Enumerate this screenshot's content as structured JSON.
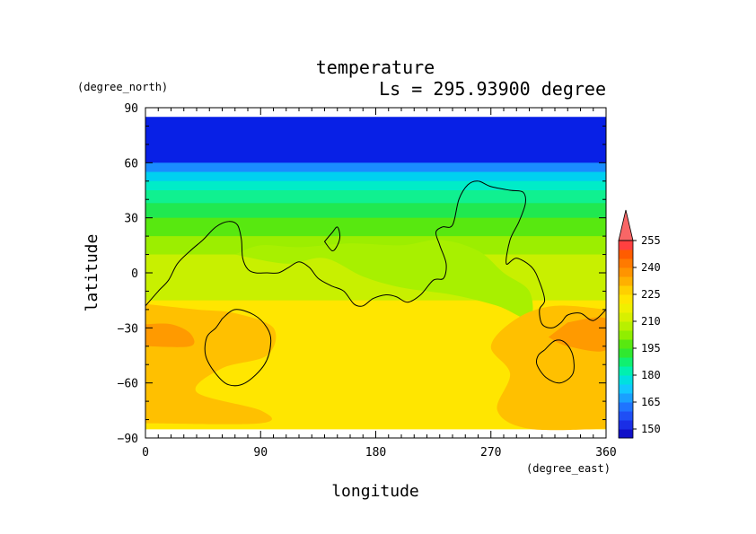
{
  "chart_data": {
    "type": "heatmap",
    "title": "temperature",
    "subtitle": "Ls = 295.93900 degree",
    "xlabel": "longitude",
    "ylabel": "latitude",
    "x_units": "(degree_east)",
    "y_units": "(degree_north)",
    "xlim": [
      0,
      360
    ],
    "ylim": [
      -90,
      90
    ],
    "x_ticks": [
      0,
      90,
      180,
      270,
      360
    ],
    "y_ticks": [
      90,
      60,
      30,
      0,
      -30,
      -60,
      -90
    ],
    "x_tick_labels": [
      "0",
      "90",
      "180",
      "270",
      "360"
    ],
    "y_tick_labels": [
      "90",
      "60",
      "30",
      "0",
      "−30",
      "−60",
      "−90"
    ],
    "colorbar": {
      "levels": [
        145,
        150,
        155,
        160,
        165,
        170,
        175,
        180,
        185,
        190,
        195,
        200,
        205,
        210,
        215,
        220,
        225,
        230,
        235,
        240,
        245,
        250,
        255,
        260
      ],
      "labels": [
        "150",
        "165",
        "180",
        "195",
        "210",
        "225",
        "240",
        "255"
      ],
      "extend": "max",
      "colors": [
        "#1010c8",
        "#1a2ee6",
        "#1f4ff5",
        "#1f74ff",
        "#1aa0ff",
        "#12c8ff",
        "#00e0e0",
        "#00f0b0",
        "#10f070",
        "#30e830",
        "#58e810",
        "#90ee00",
        "#b8f000",
        "#d8f000",
        "#f0f000",
        "#ffe600",
        "#ffd000",
        "#ffb000",
        "#ff9400",
        "#ff7a00",
        "#ff5c00",
        "#ff4040",
        "#f86666"
      ]
    },
    "bands": [
      {
        "lat": [
          60,
          85
        ],
        "value": 148,
        "color": "#0820e6"
      },
      {
        "lat": [
          55,
          60
        ],
        "value": 165,
        "color": "#1a8cff"
      },
      {
        "lat": [
          50,
          55
        ],
        "value": 172,
        "color": "#00d0f0"
      },
      {
        "lat": [
          45,
          50
        ],
        "value": 178,
        "color": "#00ecc8"
      },
      {
        "lat": [
          38,
          45
        ],
        "value": 185,
        "color": "#10f090"
      },
      {
        "lat": [
          30,
          38
        ],
        "value": 192,
        "color": "#20e850"
      },
      {
        "lat": [
          20,
          30
        ],
        "value": 200,
        "color": "#58e810"
      },
      {
        "lat": [
          10,
          20
        ],
        "value": 206,
        "color": "#9cee00"
      },
      {
        "lat": [
          -15,
          10
        ],
        "value": 213,
        "color": "#c8f000"
      },
      {
        "lat": [
          -85,
          -15
        ],
        "value": 222,
        "color": "#ffe600"
      }
    ],
    "regions": [
      {
        "value": 210,
        "color": "#a8f000",
        "points": [
          [
            70,
            10
          ],
          [
            110,
            5
          ],
          [
            140,
            8
          ],
          [
            170,
            -2
          ],
          [
            200,
            -8
          ],
          [
            240,
            -12
          ],
          [
            275,
            -18
          ],
          [
            300,
            -25
          ],
          [
            300,
            -10
          ],
          [
            280,
            0
          ],
          [
            260,
            12
          ],
          [
            230,
            18
          ],
          [
            200,
            15
          ],
          [
            160,
            16
          ],
          [
            120,
            14
          ],
          [
            90,
            15
          ],
          [
            70,
            10
          ]
        ]
      },
      {
        "value": 230,
        "color": "#ffc000",
        "points": [
          [
            0,
            -17
          ],
          [
            40,
            -20
          ],
          [
            70,
            -22
          ],
          [
            100,
            -30
          ],
          [
            95,
            -45
          ],
          [
            60,
            -52
          ],
          [
            40,
            -65
          ],
          [
            90,
            -75
          ],
          [
            90,
            -82
          ],
          [
            0,
            -82
          ]
        ]
      },
      {
        "value": 230,
        "color": "#ffc000",
        "points": [
          [
            360,
            -20
          ],
          [
            320,
            -18
          ],
          [
            290,
            -25
          ],
          [
            270,
            -40
          ],
          [
            285,
            -55
          ],
          [
            275,
            -75
          ],
          [
            300,
            -85
          ],
          [
            360,
            -85
          ]
        ]
      },
      {
        "value": 237,
        "color": "#ff9a00",
        "points": [
          [
            0,
            -28
          ],
          [
            20,
            -28
          ],
          [
            35,
            -33
          ],
          [
            35,
            -40
          ],
          [
            0,
            -40
          ]
        ]
      },
      {
        "value": 237,
        "color": "#ff9a00",
        "points": [
          [
            330,
            -27
          ],
          [
            360,
            -25
          ],
          [
            360,
            -42
          ],
          [
            330,
            -40
          ],
          [
            315,
            -35
          ]
        ]
      }
    ],
    "contours": [
      {
        "name": "continent",
        "points": [
          [
            0,
            -18
          ],
          [
            10,
            -10
          ],
          [
            18,
            -4
          ],
          [
            25,
            5
          ],
          [
            35,
            12
          ],
          [
            45,
            18
          ],
          [
            55,
            25
          ],
          [
            65,
            28
          ],
          [
            72,
            26
          ],
          [
            75,
            18
          ],
          [
            76,
            8
          ],
          [
            80,
            2
          ],
          [
            86,
            0
          ],
          [
            95,
            0
          ],
          [
            104,
            0
          ],
          [
            112,
            3
          ],
          [
            120,
            6
          ],
          [
            128,
            3
          ],
          [
            135,
            -3
          ],
          [
            145,
            -7
          ],
          [
            155,
            -10
          ],
          [
            163,
            -17
          ],
          [
            170,
            -18
          ],
          [
            178,
            -14
          ],
          [
            188,
            -12
          ],
          [
            196,
            -13
          ],
          [
            205,
            -16
          ],
          [
            215,
            -12
          ],
          [
            225,
            -4
          ],
          [
            233,
            -3
          ],
          [
            235,
            5
          ],
          [
            230,
            15
          ],
          [
            227,
            22
          ],
          [
            232,
            25
          ],
          [
            240,
            26
          ],
          [
            245,
            40
          ],
          [
            252,
            48
          ],
          [
            260,
            50
          ],
          [
            270,
            47
          ],
          [
            285,
            45
          ],
          [
            295,
            44
          ],
          [
            297,
            38
          ],
          [
            292,
            28
          ],
          [
            285,
            18
          ],
          [
            282,
            5
          ],
          [
            290,
            8
          ],
          [
            302,
            3
          ],
          [
            308,
            -5
          ],
          [
            312,
            -15
          ],
          [
            308,
            -20
          ],
          [
            310,
            -28
          ],
          [
            318,
            -30
          ],
          [
            325,
            -27
          ],
          [
            330,
            -23
          ],
          [
            340,
            -22
          ],
          [
            350,
            -26
          ],
          [
            360,
            -20
          ]
        ]
      },
      {
        "name": "island",
        "points": [
          [
            140,
            17
          ],
          [
            146,
            22
          ],
          [
            150,
            25
          ],
          [
            152,
            20
          ],
          [
            150,
            15
          ],
          [
            146,
            12
          ],
          [
            140,
            17
          ]
        ]
      },
      {
        "name": "crater-west",
        "points": [
          [
            60,
            -25
          ],
          [
            70,
            -20
          ],
          [
            85,
            -23
          ],
          [
            95,
            -30
          ],
          [
            98,
            -38
          ],
          [
            93,
            -50
          ],
          [
            78,
            -60
          ],
          [
            65,
            -61
          ],
          [
            55,
            -55
          ],
          [
            47,
            -45
          ],
          [
            48,
            -35
          ],
          [
            55,
            -30
          ],
          [
            60,
            -25
          ]
        ]
      },
      {
        "name": "crater-east",
        "points": [
          [
            312,
            -42
          ],
          [
            320,
            -37
          ],
          [
            328,
            -38
          ],
          [
            334,
            -45
          ],
          [
            334,
            -55
          ],
          [
            324,
            -60
          ],
          [
            313,
            -57
          ],
          [
            306,
            -50
          ],
          [
            307,
            -45
          ],
          [
            312,
            -42
          ]
        ]
      }
    ],
    "grid": false,
    "legend": "colorbar-right"
  }
}
